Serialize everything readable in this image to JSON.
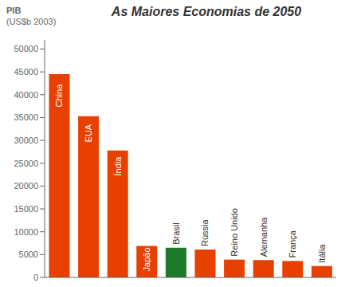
{
  "chart_data": {
    "type": "bar",
    "title": "As Maiores Economias de 2050",
    "ylabel": "PIB\n(US$b 2003)",
    "categories": [
      "China",
      "EUA",
      "Índia",
      "Japão",
      "Brasil",
      "Rússia",
      "Reino Unido",
      "Alemanha",
      "França",
      "Itália"
    ],
    "values": [
      44500,
      35300,
      27800,
      6900,
      6500,
      6100,
      3900,
      3800,
      3600,
      2500
    ],
    "colors": [
      "#E84000",
      "#E84000",
      "#E84000",
      "#E84000",
      "#1A7A2A",
      "#E84000",
      "#E84000",
      "#E84000",
      "#E84000",
      "#E84000"
    ],
    "ylim": [
      0,
      52000
    ],
    "yticks": [
      0,
      5000,
      10000,
      15000,
      20000,
      25000,
      30000,
      35000,
      40000,
      45000,
      50000
    ],
    "grid": false,
    "tick_labels": "y"
  }
}
